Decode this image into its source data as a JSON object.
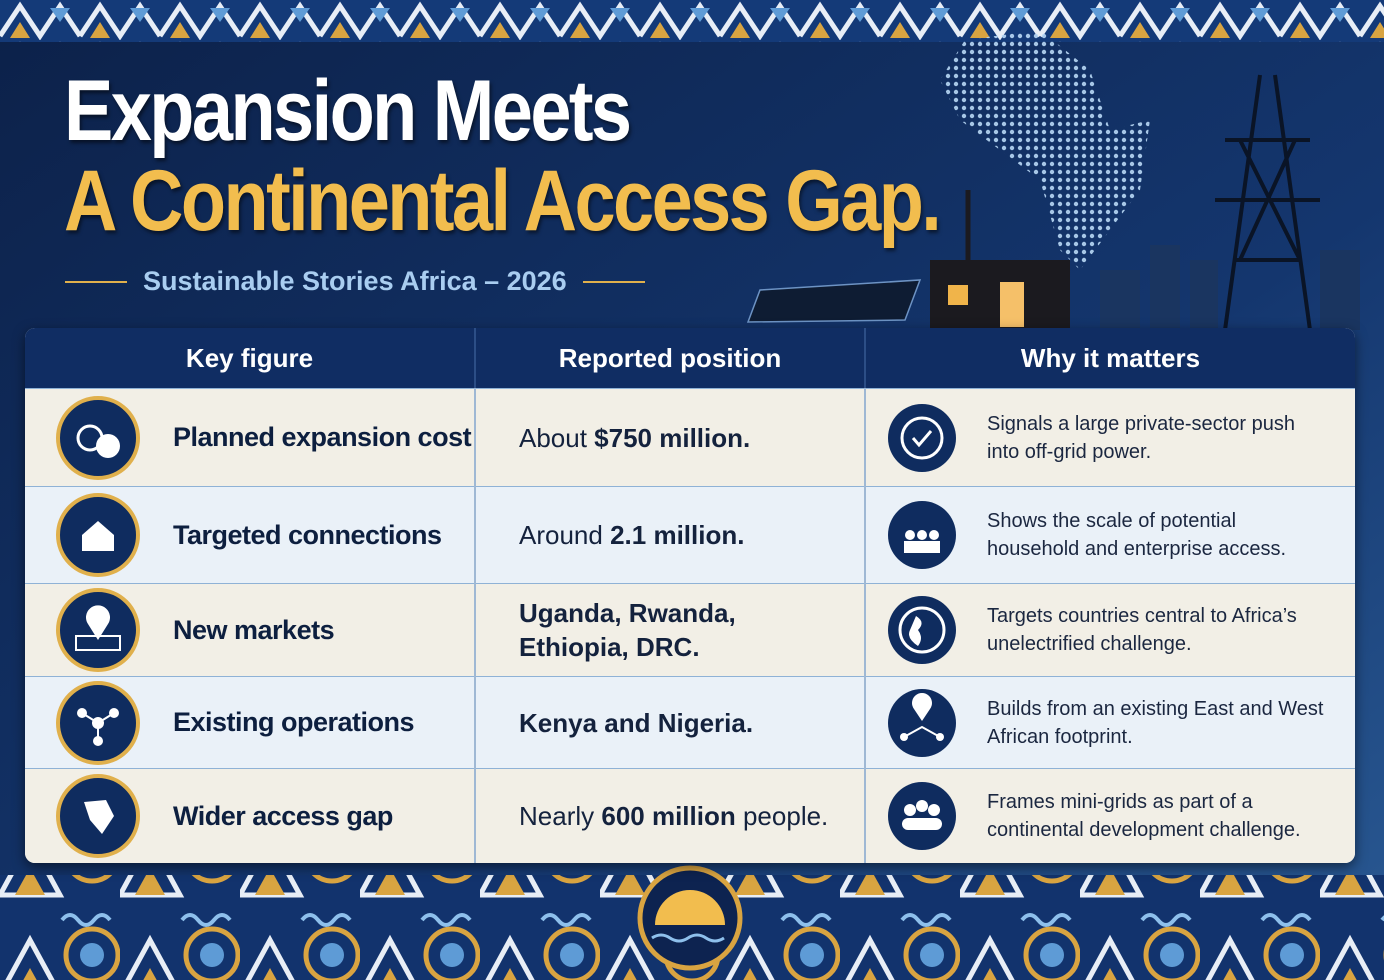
{
  "header": {
    "title_line1": "Expansion Meets",
    "title_line2": "A Continental Access Gap.",
    "subtitle": "Sustainable Stories Africa – 2026"
  },
  "table": {
    "headers": [
      "Key figure",
      "Reported position",
      "Why it matters"
    ],
    "rows": [
      {
        "key": "Planned expansion cost",
        "position": [
          {
            "text": "About ",
            "bold": false
          },
          {
            "text": "$750 million.",
            "bold": true
          }
        ],
        "why": "Signals a large private-sector push into off-grid power."
      },
      {
        "key": "Targeted connections",
        "position": [
          {
            "text": "Around ",
            "bold": false
          },
          {
            "text": "2.1 million.",
            "bold": true
          }
        ],
        "why": "Shows the scale of potential household and enterprise access."
      },
      {
        "key": "New markets",
        "position": [
          {
            "text": "Uganda, Rwanda, Ethiopia, DRC.",
            "bold": true
          }
        ],
        "why": "Targets countries central to Africa’s unelectrified challenge."
      },
      {
        "key": "Existing operations",
        "position": [
          {
            "text": "Kenya and Nigeria.",
            "bold": true
          }
        ],
        "why": "Builds from an existing East and West African footprint."
      },
      {
        "key": "Wider access gap",
        "position": [
          {
            "text": "Nearly ",
            "bold": false
          },
          {
            "text": "600 million",
            "bold": true
          },
          {
            "text": " people.",
            "bold": false
          }
        ],
        "why": "Frames mini-grids as part of a continental development challenge."
      }
    ]
  }
}
